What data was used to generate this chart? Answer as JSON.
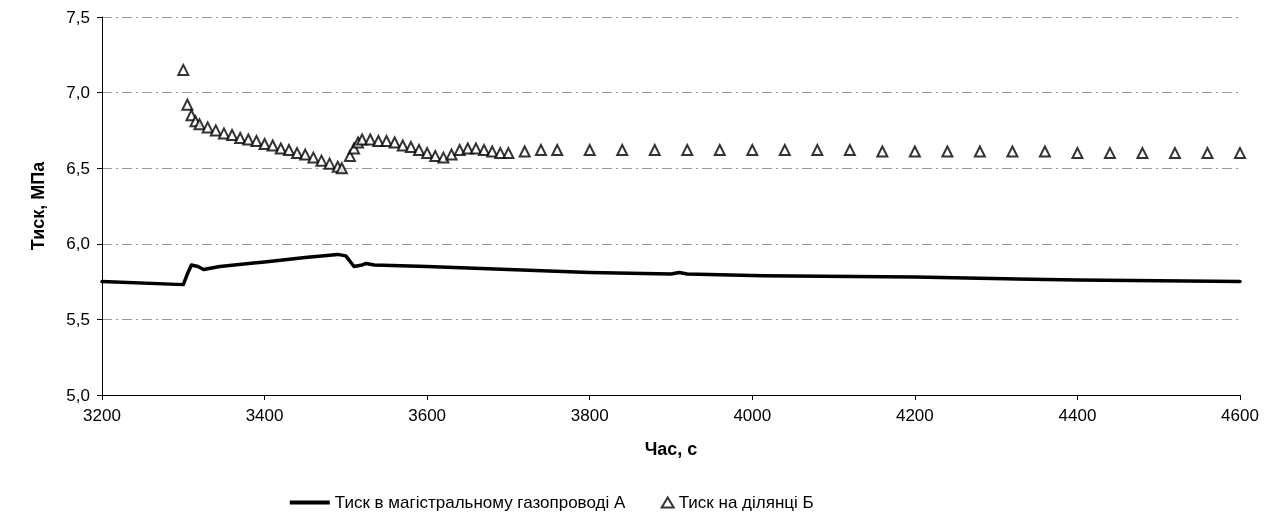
{
  "chart_data": {
    "type": "line",
    "xlabel": "Час, с",
    "ylabel": "Тиск, МПа",
    "xlim": [
      3200,
      4600
    ],
    "xticks": [
      3200,
      3400,
      3600,
      3800,
      4000,
      4200,
      4400,
      4600
    ],
    "ylim": [
      5.0,
      7.5
    ],
    "yticks": [
      {
        "value": 5.0,
        "label": "5,0"
      },
      {
        "value": 5.5,
        "label": "5,5"
      },
      {
        "value": 6.0,
        "label": "6,0"
      },
      {
        "value": 6.5,
        "label": "6,5"
      },
      {
        "value": 7.0,
        "label": "7,0"
      },
      {
        "value": 7.5,
        "label": "7,5"
      }
    ],
    "grid": "y",
    "legend": "bottom",
    "series": [
      {
        "name": "Тиск в магістральному газопроводі А",
        "type": "line",
        "marker": "none",
        "line_style": "solid",
        "color": "#000000",
        "x": [
          3200,
          3300,
          3305,
          3310,
          3318,
          3325,
          3335,
          3345,
          3400,
          3450,
          3490,
          3500,
          3510,
          3520,
          3525,
          3535,
          3600,
          3700,
          3800,
          3900,
          3910,
          3920,
          4000,
          4200,
          4400,
          4600
        ],
        "values": [
          5.75,
          5.73,
          5.8,
          5.86,
          5.85,
          5.83,
          5.84,
          5.85,
          5.88,
          5.91,
          5.93,
          5.92,
          5.85,
          5.86,
          5.87,
          5.86,
          5.85,
          5.83,
          5.81,
          5.8,
          5.81,
          5.8,
          5.79,
          5.78,
          5.76,
          5.75
        ]
      },
      {
        "name": "Тиск на ділянці Б",
        "type": "scatter",
        "marker": "triangle",
        "color": "#000000",
        "x": [
          3300,
          3305,
          3310,
          3315,
          3320,
          3330,
          3340,
          3350,
          3360,
          3370,
          3380,
          3390,
          3400,
          3410,
          3420,
          3430,
          3440,
          3450,
          3460,
          3470,
          3480,
          3490,
          3495,
          3505,
          3510,
          3515,
          3520,
          3530,
          3540,
          3550,
          3560,
          3570,
          3580,
          3590,
          3600,
          3610,
          3620,
          3630,
          3640,
          3650,
          3660,
          3670,
          3680,
          3690,
          3700,
          3720,
          3740,
          3760,
          3800,
          3840,
          3880,
          3920,
          3960,
          4000,
          4040,
          4080,
          4120,
          4160,
          4200,
          4240,
          4280,
          4320,
          4360,
          4400,
          4440,
          4480,
          4520,
          4560,
          4600
        ],
        "values": [
          7.15,
          6.92,
          6.85,
          6.81,
          6.79,
          6.77,
          6.75,
          6.73,
          6.72,
          6.7,
          6.69,
          6.68,
          6.66,
          6.65,
          6.63,
          6.62,
          6.6,
          6.59,
          6.57,
          6.55,
          6.53,
          6.51,
          6.5,
          6.58,
          6.63,
          6.67,
          6.69,
          6.69,
          6.68,
          6.68,
          6.67,
          6.65,
          6.64,
          6.62,
          6.6,
          6.58,
          6.57,
          6.59,
          6.62,
          6.63,
          6.63,
          6.62,
          6.61,
          6.6,
          6.6,
          6.61,
          6.62,
          6.62,
          6.62,
          6.62,
          6.62,
          6.62,
          6.62,
          6.62,
          6.62,
          6.62,
          6.62,
          6.61,
          6.61,
          6.61,
          6.61,
          6.61,
          6.61,
          6.6,
          6.6,
          6.6,
          6.6,
          6.6,
          6.6
        ]
      }
    ]
  }
}
